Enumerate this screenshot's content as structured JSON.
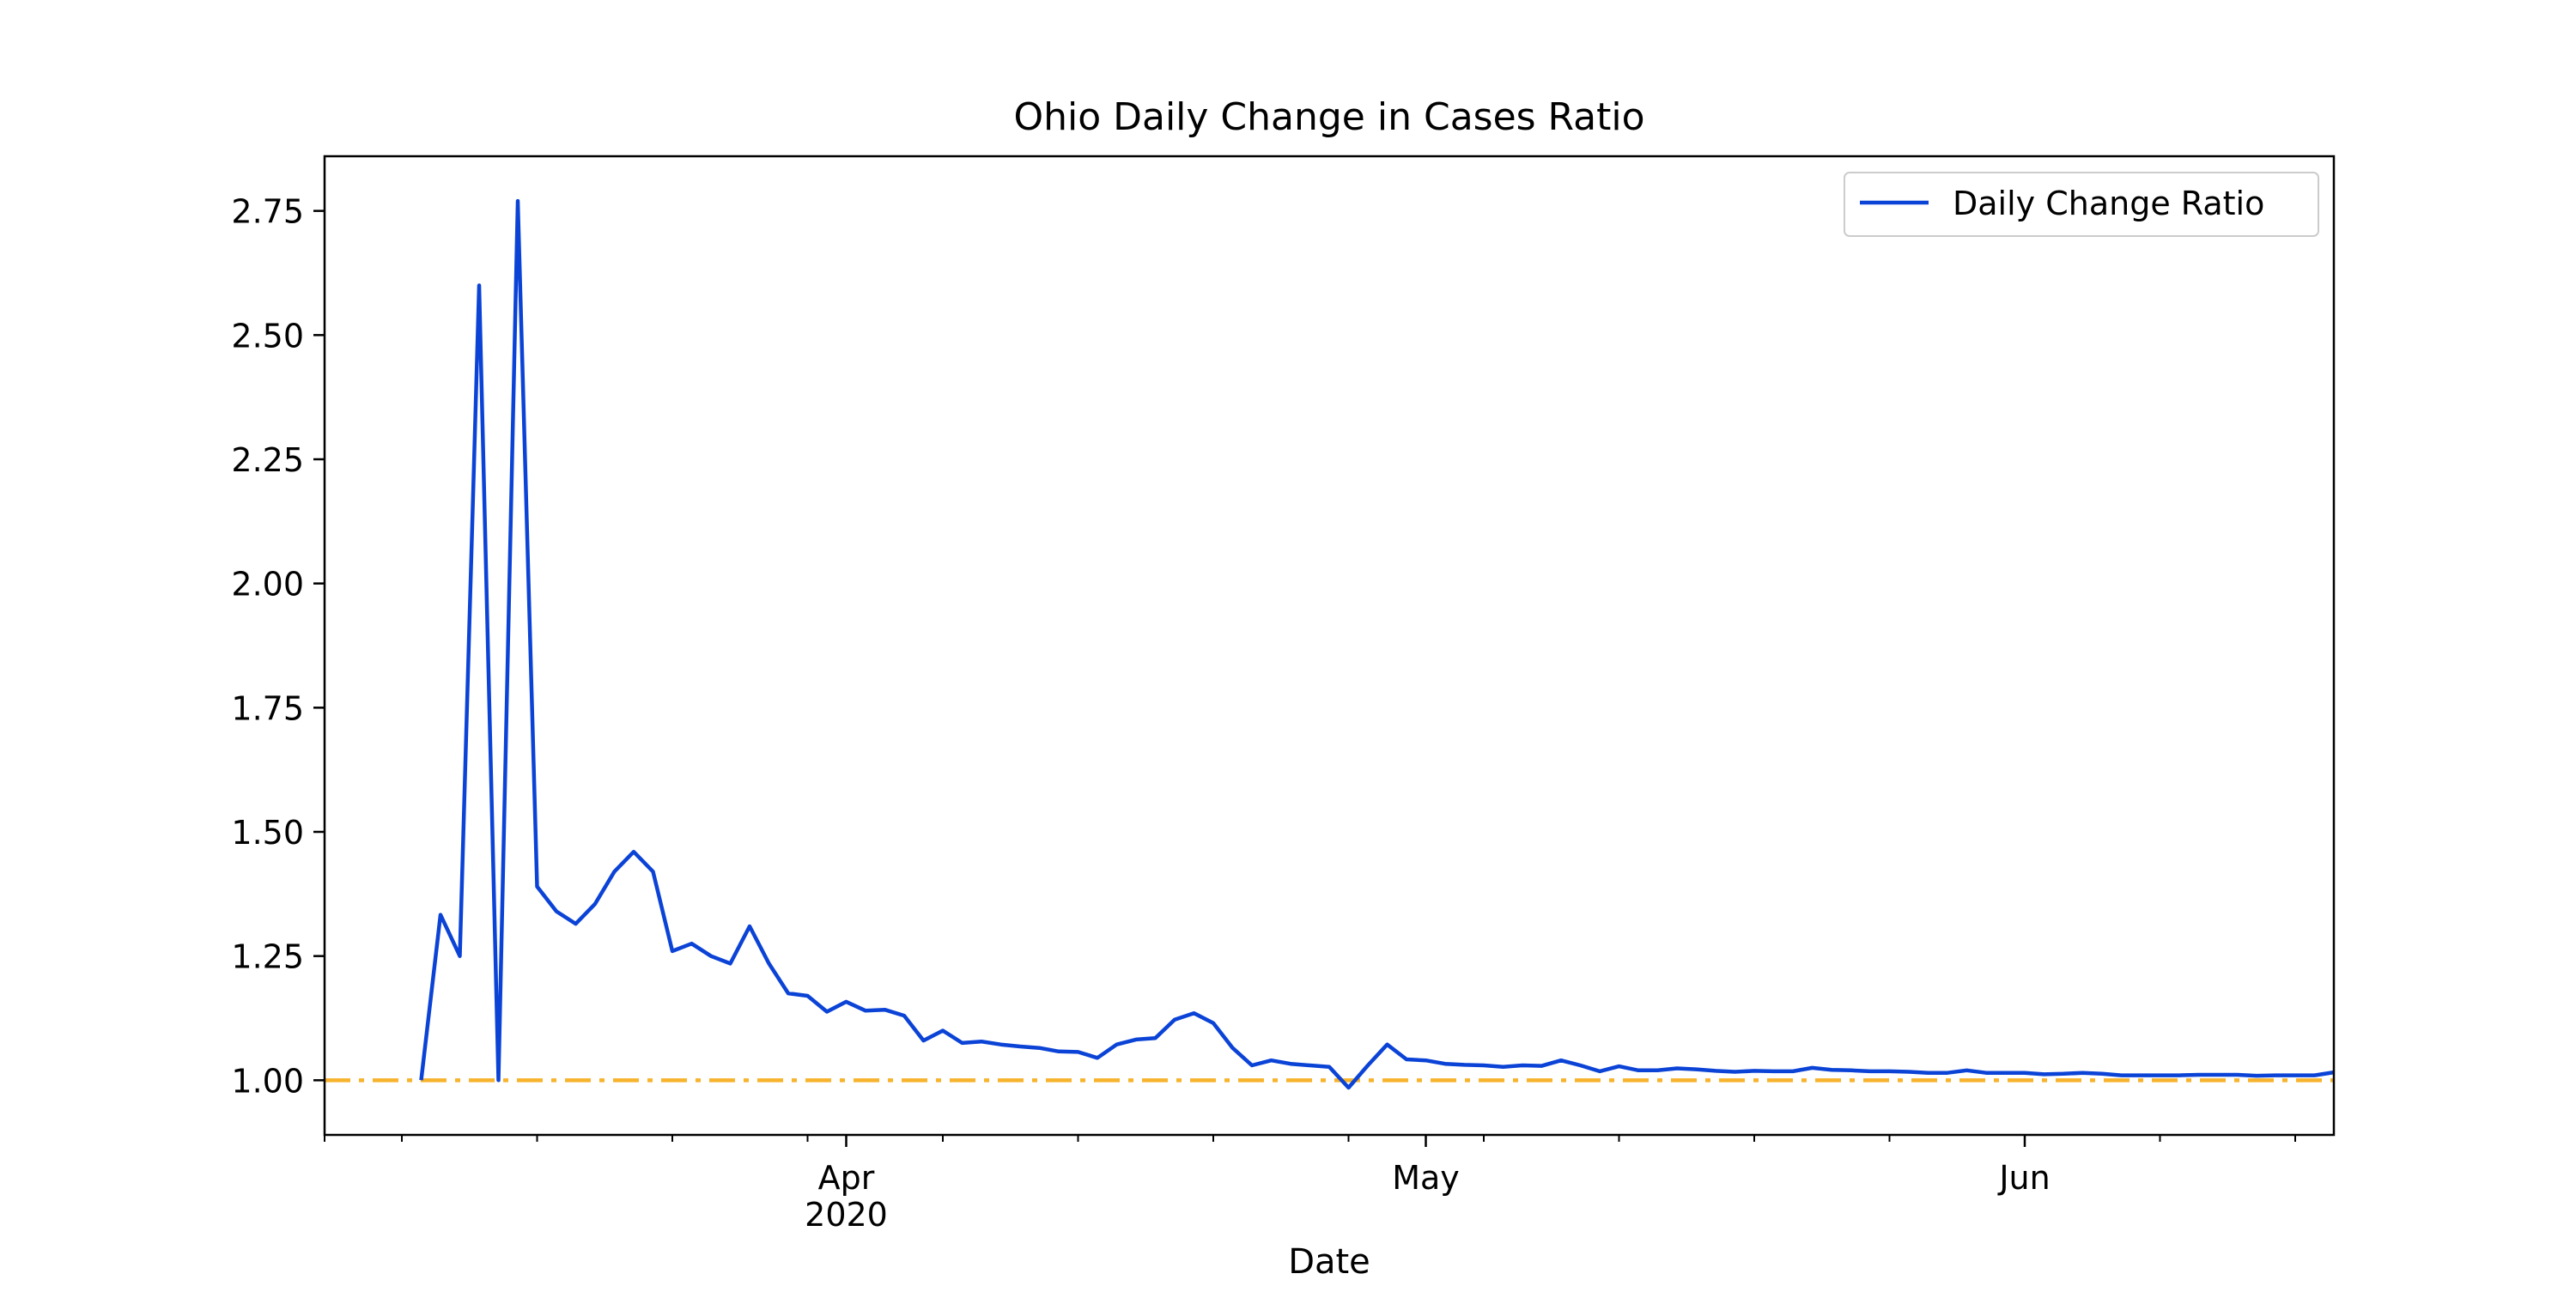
{
  "chart_data": {
    "type": "line",
    "title": "Ohio Daily Change in Cases Ratio",
    "xlabel": "Date",
    "ylabel": "",
    "xlim": [
      "2020-03-05",
      "2020-06-17"
    ],
    "ylim": [
      0.89,
      2.86
    ],
    "grid": false,
    "legend_position": "top-right",
    "x_major_ticks": [
      {
        "date": "2020-04-01",
        "label": "Apr",
        "sublabel": "2020"
      },
      {
        "date": "2020-05-01",
        "label": "May",
        "sublabel": ""
      },
      {
        "date": "2020-06-01",
        "label": "Jun",
        "sublabel": ""
      }
    ],
    "x_minor_ticks": [
      "2020-03-05",
      "2020-03-09",
      "2020-03-16",
      "2020-03-23",
      "2020-03-30",
      "2020-04-06",
      "2020-04-13",
      "2020-04-20",
      "2020-04-27",
      "2020-05-04",
      "2020-05-11",
      "2020-05-18",
      "2020-05-25",
      "2020-06-08",
      "2020-06-15"
    ],
    "y_ticks": [
      "1.00",
      "1.25",
      "1.50",
      "1.75",
      "2.00",
      "2.25",
      "2.50",
      "2.75"
    ],
    "series": [
      {
        "name": "Daily Change Ratio",
        "color": "#0b43d6",
        "dates": [
          "2020-03-10",
          "2020-03-11",
          "2020-03-12",
          "2020-03-13",
          "2020-03-14",
          "2020-03-15",
          "2020-03-16",
          "2020-03-17",
          "2020-03-18",
          "2020-03-19",
          "2020-03-20",
          "2020-03-21",
          "2020-03-22",
          "2020-03-23",
          "2020-03-24",
          "2020-03-25",
          "2020-03-26",
          "2020-03-27",
          "2020-03-28",
          "2020-03-29",
          "2020-03-30",
          "2020-03-31",
          "2020-04-01",
          "2020-04-02",
          "2020-04-03",
          "2020-04-04",
          "2020-04-05",
          "2020-04-06",
          "2020-04-07",
          "2020-04-08",
          "2020-04-09",
          "2020-04-10",
          "2020-04-11",
          "2020-04-12",
          "2020-04-13",
          "2020-04-14",
          "2020-04-15",
          "2020-04-16",
          "2020-04-17",
          "2020-04-18",
          "2020-04-19",
          "2020-04-20",
          "2020-04-21",
          "2020-04-22",
          "2020-04-23",
          "2020-04-24",
          "2020-04-25",
          "2020-04-26",
          "2020-04-27",
          "2020-04-28",
          "2020-04-29",
          "2020-04-30",
          "2020-05-01",
          "2020-05-02",
          "2020-05-03",
          "2020-05-04",
          "2020-05-05",
          "2020-05-06",
          "2020-05-07",
          "2020-05-08",
          "2020-05-09",
          "2020-05-10",
          "2020-05-11",
          "2020-05-12",
          "2020-05-13",
          "2020-05-14",
          "2020-05-15",
          "2020-05-16",
          "2020-05-17",
          "2020-05-18",
          "2020-05-19",
          "2020-05-20",
          "2020-05-21",
          "2020-05-22",
          "2020-05-23",
          "2020-05-24",
          "2020-05-25",
          "2020-05-26",
          "2020-05-27",
          "2020-05-28",
          "2020-05-29",
          "2020-05-30",
          "2020-05-31",
          "2020-06-01",
          "2020-06-02",
          "2020-06-03",
          "2020-06-04",
          "2020-06-05",
          "2020-06-06",
          "2020-06-07",
          "2020-06-08",
          "2020-06-09",
          "2020-06-10",
          "2020-06-11",
          "2020-06-12",
          "2020-06-13",
          "2020-06-14",
          "2020-06-15",
          "2020-06-16",
          "2020-06-17"
        ],
        "values": [
          1.0,
          1.333,
          1.25,
          2.6,
          1.0,
          2.77,
          1.39,
          1.34,
          1.315,
          1.355,
          1.42,
          1.46,
          1.42,
          1.26,
          1.275,
          1.25,
          1.235,
          1.31,
          1.235,
          1.175,
          1.17,
          1.138,
          1.158,
          1.14,
          1.142,
          1.13,
          1.08,
          1.1,
          1.075,
          1.078,
          1.072,
          1.068,
          1.065,
          1.058,
          1.057,
          1.045,
          1.072,
          1.082,
          1.085,
          1.122,
          1.135,
          1.115,
          1.065,
          1.03,
          1.04,
          1.033,
          1.03,
          1.027,
          0.985,
          1.03,
          1.072,
          1.042,
          1.04,
          1.033,
          1.031,
          1.03,
          1.027,
          1.03,
          1.029,
          1.04,
          1.03,
          1.018,
          1.028,
          1.02,
          1.02,
          1.024,
          1.022,
          1.019,
          1.017,
          1.019,
          1.018,
          1.018,
          1.025,
          1.021,
          1.02,
          1.018,
          1.018,
          1.017,
          1.015,
          1.015,
          1.02,
          1.015,
          1.015,
          1.015,
          1.012,
          1.013,
          1.015,
          1.013,
          1.01,
          1.01,
          1.01,
          1.01,
          1.011,
          1.011,
          1.011,
          1.009,
          1.01,
          1.01,
          1.01,
          1.016
        ]
      }
    ],
    "reference_line": {
      "y": 1.0,
      "color": "#f7b32b",
      "style": "dash-dot"
    }
  }
}
